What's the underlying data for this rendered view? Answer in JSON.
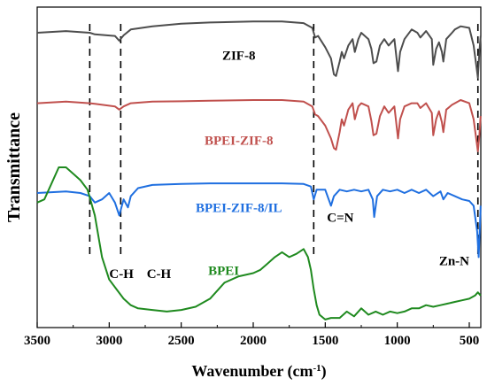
{
  "chart_data": {
    "type": "line",
    "title": "",
    "xlabel": "Wavenumber (cm",
    "xlabel_sup": "-1",
    "xlabel_close": ")",
    "ylabel": "Transmittance",
    "xlim": [
      3500,
      420
    ],
    "x_reversed": true,
    "xticks": [
      3500,
      3000,
      2500,
      2000,
      1500,
      1000,
      500
    ],
    "yticks_shown": false,
    "grid": false,
    "series": [
      {
        "name": "ZIF-8",
        "color": "#4d4d4d",
        "x": [
          3500,
          3300,
          3135,
          3100,
          2960,
          2930,
          2900,
          2850,
          2700,
          2500,
          2300,
          2000,
          1800,
          1650,
          1590,
          1570,
          1550,
          1500,
          1460,
          1440,
          1425,
          1400,
          1385,
          1370,
          1340,
          1310,
          1295,
          1270,
          1250,
          1200,
          1180,
          1165,
          1145,
          1120,
          1090,
          1060,
          1020,
          995,
          980,
          950,
          900,
          860,
          840,
          800,
          760,
          750,
          730,
          710,
          690,
          680,
          660,
          620,
          600,
          560,
          500,
          470,
          440,
          430,
          421
        ],
        "y": [
          0.92,
          0.925,
          0.92,
          0.915,
          0.91,
          0.895,
          0.912,
          0.93,
          0.94,
          0.948,
          0.952,
          0.955,
          0.955,
          0.95,
          0.935,
          0.905,
          0.91,
          0.875,
          0.84,
          0.79,
          0.785,
          0.83,
          0.86,
          0.84,
          0.88,
          0.9,
          0.86,
          0.9,
          0.92,
          0.9,
          0.87,
          0.825,
          0.83,
          0.88,
          0.9,
          0.88,
          0.9,
          0.8,
          0.86,
          0.9,
          0.93,
          0.92,
          0.905,
          0.925,
          0.9,
          0.82,
          0.87,
          0.89,
          0.86,
          0.83,
          0.9,
          0.92,
          0.93,
          0.94,
          0.935,
          0.88,
          0.78,
          0.86,
          0.91
        ]
      },
      {
        "name": "BPEI-ZIF-8",
        "color": "#c0504d",
        "x": [
          3500,
          3300,
          3135,
          3100,
          2960,
          2930,
          2900,
          2850,
          2700,
          2500,
          2300,
          2000,
          1800,
          1650,
          1590,
          1570,
          1550,
          1500,
          1460,
          1440,
          1425,
          1400,
          1385,
          1370,
          1340,
          1310,
          1295,
          1270,
          1250,
          1200,
          1180,
          1165,
          1145,
          1120,
          1090,
          1060,
          1020,
          995,
          980,
          950,
          900,
          860,
          840,
          800,
          760,
          750,
          730,
          710,
          690,
          680,
          660,
          620,
          600,
          560,
          500,
          470,
          440,
          430,
          421
        ],
        "y": [
          0.7,
          0.705,
          0.7,
          0.698,
          0.69,
          0.68,
          0.69,
          0.7,
          0.705,
          0.706,
          0.708,
          0.71,
          0.71,
          0.705,
          0.69,
          0.665,
          0.66,
          0.63,
          0.59,
          0.56,
          0.555,
          0.61,
          0.65,
          0.63,
          0.68,
          0.7,
          0.65,
          0.69,
          0.7,
          0.69,
          0.645,
          0.6,
          0.605,
          0.66,
          0.69,
          0.67,
          0.69,
          0.59,
          0.65,
          0.69,
          0.7,
          0.7,
          0.685,
          0.7,
          0.67,
          0.6,
          0.65,
          0.675,
          0.64,
          0.61,
          0.68,
          0.695,
          0.7,
          0.71,
          0.7,
          0.65,
          0.55,
          0.6,
          0.66
        ]
      },
      {
        "name": "BPEI-ZIF-8/IL",
        "color": "#1f6fe0",
        "x": [
          3500,
          3300,
          3200,
          3135,
          3100,
          3050,
          3000,
          2960,
          2930,
          2900,
          2870,
          2850,
          2800,
          2700,
          2500,
          2300,
          2000,
          1800,
          1650,
          1600,
          1580,
          1560,
          1500,
          1460,
          1440,
          1400,
          1350,
          1300,
          1250,
          1200,
          1170,
          1160,
          1140,
          1100,
          1050,
          1000,
          950,
          900,
          850,
          800,
          750,
          700,
          680,
          650,
          600,
          550,
          500,
          470,
          445,
          435,
          425,
          421
        ],
        "y": [
          0.42,
          0.425,
          0.42,
          0.41,
          0.39,
          0.4,
          0.42,
          0.39,
          0.35,
          0.4,
          0.375,
          0.41,
          0.435,
          0.445,
          0.448,
          0.45,
          0.45,
          0.45,
          0.448,
          0.44,
          0.4,
          0.43,
          0.43,
          0.38,
          0.41,
          0.43,
          0.425,
          0.43,
          0.425,
          0.43,
          0.4,
          0.345,
          0.41,
          0.43,
          0.425,
          0.43,
          0.42,
          0.43,
          0.42,
          0.43,
          0.41,
          0.425,
          0.4,
          0.42,
          0.41,
          0.4,
          0.395,
          0.38,
          0.3,
          0.22,
          0.33,
          0.38
        ]
      },
      {
        "name": "BPEI",
        "color": "#1f8a1f",
        "x": [
          3500,
          3450,
          3400,
          3350,
          3300,
          3250,
          3200,
          3150,
          3100,
          3050,
          3000,
          2950,
          2900,
          2850,
          2800,
          2700,
          2600,
          2500,
          2400,
          2300,
          2200,
          2100,
          2000,
          1950,
          1900,
          1850,
          1800,
          1750,
          1700,
          1650,
          1620,
          1600,
          1580,
          1560,
          1540,
          1500,
          1460,
          1400,
          1350,
          1300,
          1250,
          1200,
          1150,
          1100,
          1050,
          1000,
          950,
          900,
          850,
          800,
          750,
          700,
          650,
          600,
          550,
          500,
          460,
          440,
          421
        ],
        "y": [
          0.39,
          0.4,
          0.45,
          0.5,
          0.5,
          0.48,
          0.46,
          0.43,
          0.35,
          0.22,
          0.15,
          0.12,
          0.09,
          0.07,
          0.06,
          0.055,
          0.05,
          0.055,
          0.065,
          0.09,
          0.14,
          0.16,
          0.17,
          0.18,
          0.2,
          0.22,
          0.235,
          0.22,
          0.23,
          0.245,
          0.22,
          0.18,
          0.12,
          0.07,
          0.04,
          0.025,
          0.03,
          0.03,
          0.05,
          0.035,
          0.06,
          0.04,
          0.05,
          0.04,
          0.05,
          0.045,
          0.05,
          0.06,
          0.06,
          0.07,
          0.065,
          0.07,
          0.075,
          0.08,
          0.085,
          0.09,
          0.1,
          0.11,
          0.1
        ]
      }
    ],
    "dashed_markers_x": [
      3135,
      2920,
      1580,
      440
    ],
    "annotations": [
      {
        "text": "ZIF-8",
        "color": "#000000",
        "x": 2100,
        "y": 0.835
      },
      {
        "text": "BPEI-ZIF-8",
        "color": "#c0504d",
        "x": 2100,
        "y": 0.57
      },
      {
        "text": "BPEI-ZIF-8/IL",
        "color": "#1f6fe0",
        "x": 2100,
        "y": 0.36
      },
      {
        "text": "C=N",
        "color": "#000000",
        "x": 1395,
        "y": 0.33
      },
      {
        "text": "C-H",
        "color": "#000000",
        "x": 2915,
        "y": 0.155
      },
      {
        "text": "C-H",
        "color": "#000000",
        "x": 2655,
        "y": 0.155
      },
      {
        "text": "BPEI",
        "color": "#1f8a1f",
        "x": 2205,
        "y": 0.165
      },
      {
        "text": "Zn-N",
        "color": "#000000",
        "x": 605,
        "y": 0.195
      }
    ]
  }
}
